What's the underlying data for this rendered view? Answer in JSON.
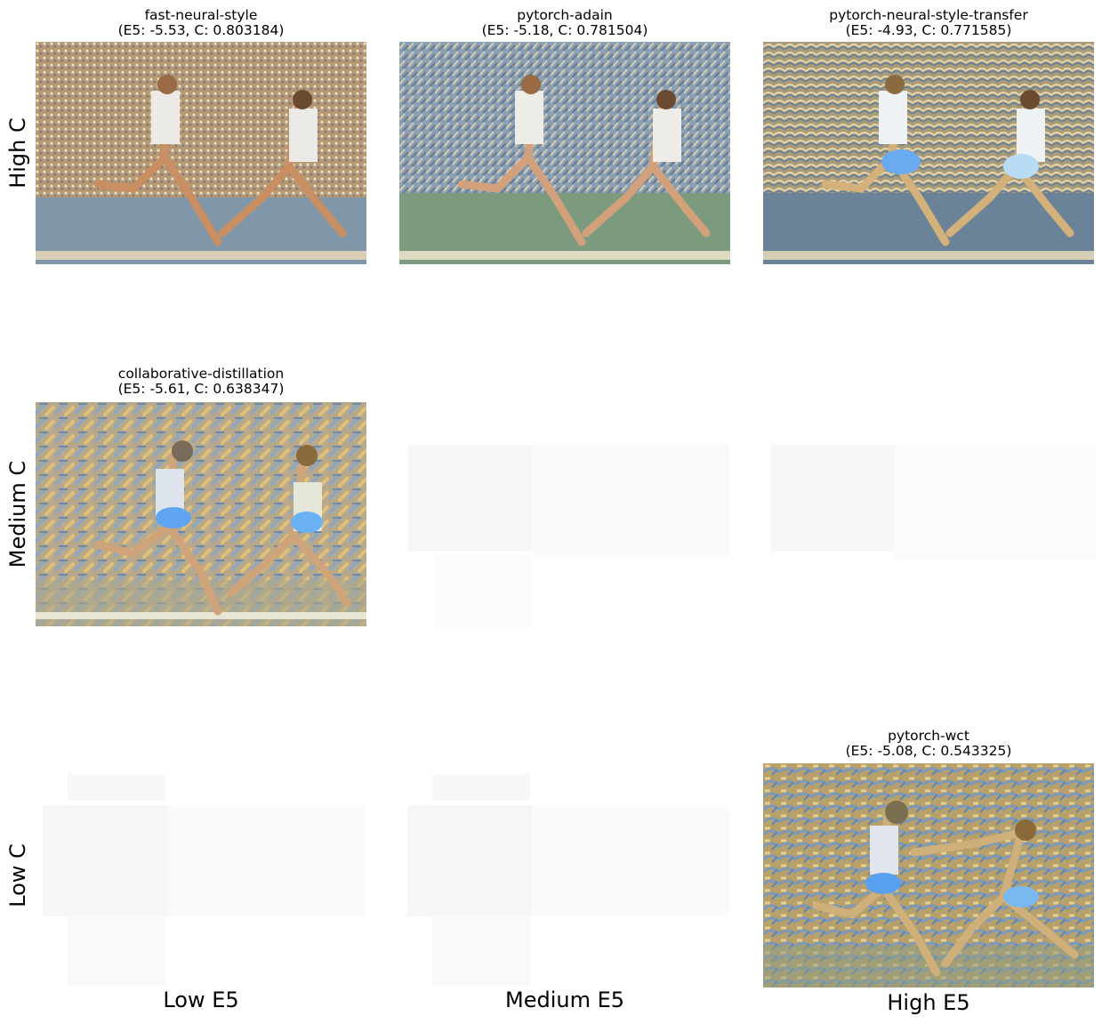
{
  "grid": {
    "row_labels": [
      "High C",
      "Medium C",
      "Low C"
    ],
    "col_labels": [
      "Low E5",
      "Medium E5",
      "High E5"
    ],
    "cells": [
      {
        "name": "fast-neural-style",
        "title": "fast-neural-style\n(E5: -5.53, C: 0.803184)"
      },
      {
        "name": "pytorch-adain",
        "title": "pytorch-adain\n(E5: -5.18, C: 0.781504)"
      },
      {
        "name": "pytorch-neural-style-transfer",
        "title": "pytorch-neural-style-transfer\n(E5: -4.93, C: 0.771585)"
      },
      {
        "name": "collaborative-distillation",
        "title": "collaborative-distillation\n(E5: -5.61, C: 0.638347)"
      },
      {
        "name": "pytorch-wct",
        "title": "pytorch-wct\n(E5: -5.08, C: 0.543325)"
      }
    ]
  }
}
